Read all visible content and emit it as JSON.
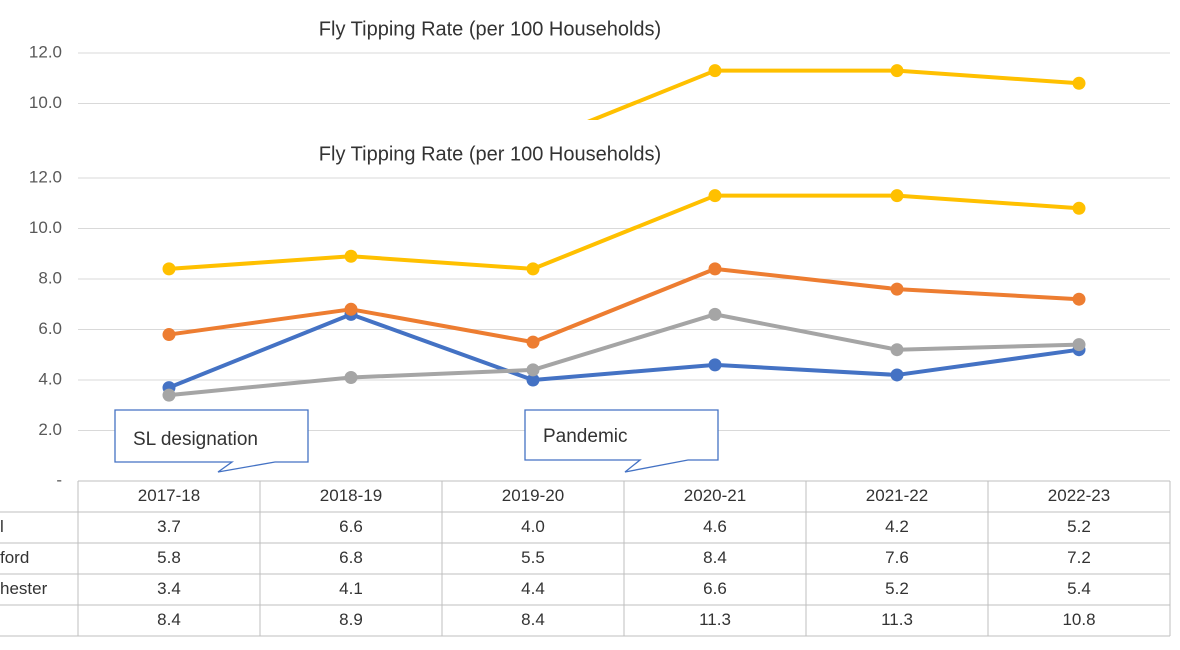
{
  "chart_data": {
    "type": "line",
    "title": "Fly Tipping Rate (per 100 Households)",
    "categories": [
      "2017-18",
      "2018-19",
      "2019-20",
      "2020-21",
      "2021-22",
      "2022-23"
    ],
    "series": [
      {
        "name": "l",
        "color": "#4472c4",
        "values": [
          3.7,
          6.6,
          4.0,
          4.6,
          4.2,
          5.2
        ],
        "value_labels": [
          "3.7",
          "6.6",
          "4.0",
          "4.6",
          "4.2",
          "5.2"
        ]
      },
      {
        "name": "ford",
        "color": "#ed7d31",
        "values": [
          5.8,
          6.8,
          5.5,
          8.4,
          7.6,
          7.2
        ],
        "value_labels": [
          "5.8",
          "6.8",
          "5.5",
          "8.4",
          "7.6",
          "7.2"
        ]
      },
      {
        "name": "hester",
        "color": "#a5a5a5",
        "values": [
          3.4,
          4.1,
          4.4,
          6.6,
          5.2,
          5.4
        ],
        "value_labels": [
          "3.4",
          "4.1",
          "4.4",
          "6.6",
          "5.2",
          "5.4"
        ]
      },
      {
        "name": null,
        "color": "#ffc000",
        "values": [
          8.4,
          8.9,
          8.4,
          11.3,
          11.3,
          10.8
        ],
        "value_labels": [
          "8.4",
          "8.9",
          "8.4",
          "11.3",
          "11.3",
          "10.8"
        ]
      }
    ],
    "ylim": [
      0,
      12
    ],
    "yticks": [
      {
        "value": 0,
        "label": "-"
      },
      {
        "value": 2,
        "label": "2.0"
      },
      {
        "value": 4,
        "label": "4.0"
      },
      {
        "value": 6,
        "label": "6.0"
      },
      {
        "value": 8,
        "label": "8.0"
      },
      {
        "value": 10,
        "label": "10.0"
      },
      {
        "value": 12,
        "label": "12.0"
      }
    ],
    "grid": true,
    "annotations": [
      {
        "text": "SL designation"
      },
      {
        "text": "Pandemic"
      }
    ]
  }
}
